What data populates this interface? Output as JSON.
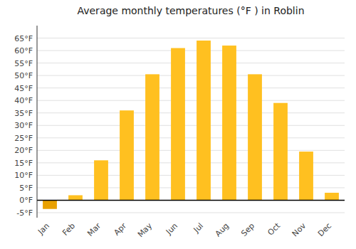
{
  "chart_data": {
    "type": "bar",
    "title": "Average monthly temperatures (°F ) in Roblin",
    "categories": [
      "Jan",
      "Feb",
      "Mar",
      "Apr",
      "May",
      "Jun",
      "Jul",
      "Aug",
      "Sep",
      "Oct",
      "Nov",
      "Dec"
    ],
    "values": [
      -3.5,
      2.0,
      16.0,
      36.0,
      50.5,
      61.0,
      64.0,
      62.0,
      50.5,
      39.0,
      19.5,
      3.0
    ],
    "colors": [
      "#E8A000",
      "#FFC020",
      "#FFC020",
      "#FFC020",
      "#FFC020",
      "#FFC020",
      "#FFC020",
      "#FFC020",
      "#FFC020",
      "#FFC020",
      "#FFC020",
      "#FFC020"
    ],
    "ylim": [
      -7,
      70
    ],
    "yticks": [
      {
        "value": -5,
        "label": "-5°F"
      },
      {
        "value": 0,
        "label": "0°F"
      },
      {
        "value": 5,
        "label": "5°F"
      },
      {
        "value": 10,
        "label": "10°F"
      },
      {
        "value": 15,
        "label": "15°F"
      },
      {
        "value": 20,
        "label": "20°F"
      },
      {
        "value": 25,
        "label": "25°F"
      },
      {
        "value": 30,
        "label": "30°F"
      },
      {
        "value": 35,
        "label": "35°F"
      },
      {
        "value": 40,
        "label": "40°F"
      },
      {
        "value": 45,
        "label": "45°F"
      },
      {
        "value": 50,
        "label": "50°F"
      },
      {
        "value": 55,
        "label": "55°F"
      },
      {
        "value": 60,
        "label": "60°F"
      },
      {
        "value": 65,
        "label": "65°F"
      }
    ],
    "grid": true
  }
}
